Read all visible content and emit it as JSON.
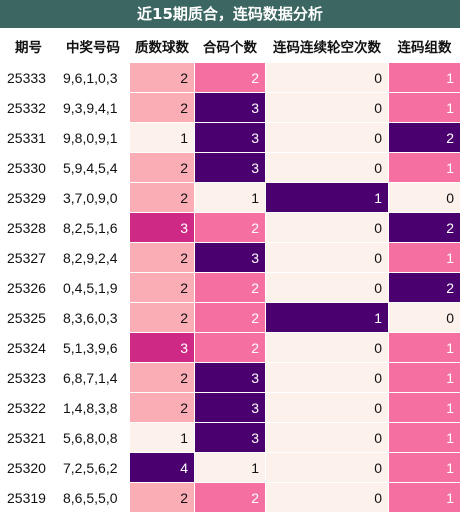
{
  "title": "近15期质合，连码数据分析",
  "headers": [
    "期号",
    "中奖号码",
    "质数球数",
    "合码个数",
    "连码连续轮空次数",
    "连码组数"
  ],
  "colors": {
    "0": "#fdf1ec",
    "1": "#fdf1ec",
    "2": "#fbadb6",
    "3": "#cd2985",
    "4": "#4a006e",
    "light_text": "#111111",
    "dark_text": "#ffffff"
  },
  "rows": [
    {
      "period": "25333",
      "numbers": "9,6,1,0,3",
      "prime": "2",
      "composite": "2",
      "gap": "0",
      "groups": "1"
    },
    {
      "period": "25332",
      "numbers": "9,3,9,4,1",
      "prime": "2",
      "composite": "3",
      "gap": "0",
      "groups": "1"
    },
    {
      "period": "25331",
      "numbers": "9,8,0,9,1",
      "prime": "1",
      "composite": "3",
      "gap": "0",
      "groups": "2"
    },
    {
      "period": "25330",
      "numbers": "5,9,4,5,4",
      "prime": "2",
      "composite": "3",
      "gap": "0",
      "groups": "1"
    },
    {
      "period": "25329",
      "numbers": "3,7,0,9,0",
      "prime": "2",
      "composite": "1",
      "gap": "1",
      "groups": "0"
    },
    {
      "period": "25328",
      "numbers": "8,2,5,1,6",
      "prime": "3",
      "composite": "2",
      "gap": "0",
      "groups": "2"
    },
    {
      "period": "25327",
      "numbers": "8,2,9,2,4",
      "prime": "2",
      "composite": "3",
      "gap": "0",
      "groups": "1"
    },
    {
      "period": "25326",
      "numbers": "0,4,5,1,9",
      "prime": "2",
      "composite": "2",
      "gap": "0",
      "groups": "2"
    },
    {
      "period": "25325",
      "numbers": "8,3,6,0,3",
      "prime": "2",
      "composite": "2",
      "gap": "1",
      "groups": "0"
    },
    {
      "period": "25324",
      "numbers": "5,1,3,9,6",
      "prime": "3",
      "composite": "2",
      "gap": "0",
      "groups": "1"
    },
    {
      "period": "25323",
      "numbers": "6,8,7,1,4",
      "prime": "2",
      "composite": "3",
      "gap": "0",
      "groups": "1"
    },
    {
      "period": "25322",
      "numbers": "1,4,8,3,8",
      "prime": "2",
      "composite": "3",
      "gap": "0",
      "groups": "1"
    },
    {
      "period": "25321",
      "numbers": "5,6,8,0,8",
      "prime": "1",
      "composite": "3",
      "gap": "0",
      "groups": "1"
    },
    {
      "period": "25320",
      "numbers": "7,2,5,6,2",
      "prime": "4",
      "composite": "1",
      "gap": "0",
      "groups": "1"
    },
    {
      "period": "25319",
      "numbers": "8,6,5,5,0",
      "prime": "2",
      "composite": "2",
      "gap": "0",
      "groups": "1"
    }
  ]
}
